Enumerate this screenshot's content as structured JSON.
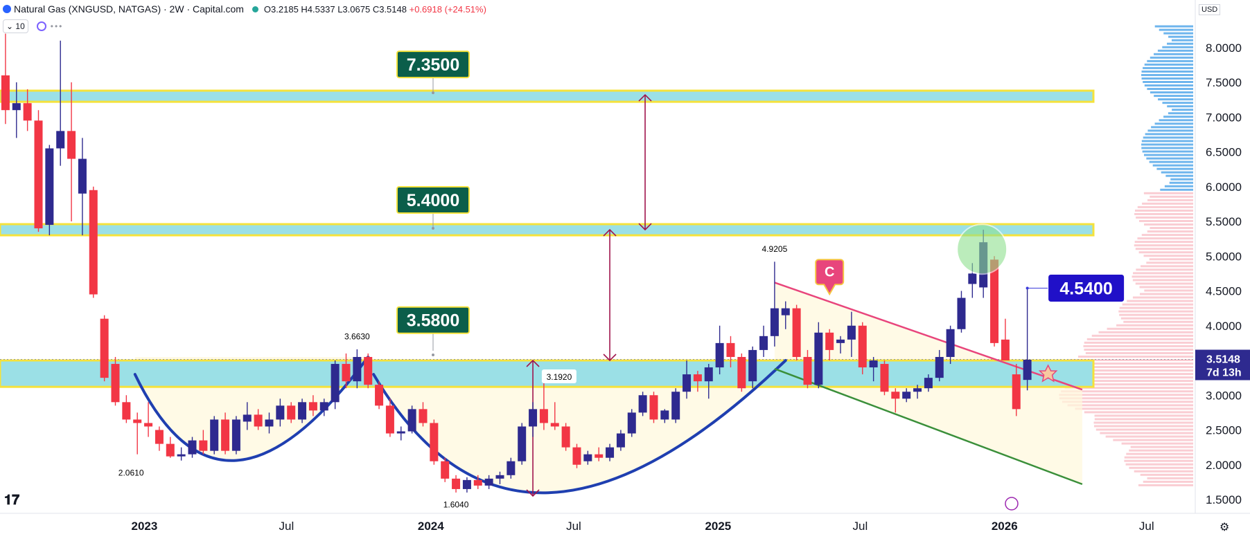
{
  "header": {
    "symbol": "Natural Gas (XNGUSD, NATGAS) · 2W · Capital.com",
    "open": "O3.2185",
    "high": "H4.5337",
    "low": "L3.0675",
    "close": "C3.5148",
    "change": "+0.6918 (+24.51%)",
    "interval_count": "10",
    "currency": "USD",
    "colors": {
      "up": "#2e2a8f",
      "down": "#f23645",
      "accent": "#2962ff"
    }
  },
  "chart_data": {
    "type": "candlestick",
    "y_axis": {
      "ticks": [
        1.5,
        2.0,
        2.5,
        3.0,
        3.5,
        4.0,
        4.5,
        5.0,
        5.5,
        6.0,
        6.5,
        7.0,
        7.5,
        8.0
      ],
      "tick_labels": [
        "1.5000",
        "2.0000",
        "2.5000",
        "3.0000",
        "3.5000",
        "4.0000",
        "4.5000",
        "5.0000",
        "5.5000",
        "6.0000",
        "6.5000",
        "7.0000",
        "7.5000",
        "8.0000"
      ],
      "ylim": [
        1.2,
        8.6
      ]
    },
    "x_axis": {
      "ticks": [
        "2023-01-01",
        "2023-07-01",
        "2024-01-01",
        "2024-07-01",
        "2025-01-01",
        "2025-07-01",
        "2026-01-01",
        "2026-07-01"
      ],
      "tick_labels": [
        "2023",
        "Jul",
        "2024",
        "Jul",
        "2025",
        "Jul",
        "2026",
        "Jul"
      ],
      "xlim": [
        "2022-07-01",
        "2026-09-01"
      ]
    },
    "candles": [
      {
        "d": "2022-07-08",
        "o": 7.6,
        "h": 8.2,
        "l": 6.9,
        "c": 7.1
      },
      {
        "d": "2022-07-22",
        "o": 7.1,
        "h": 7.5,
        "l": 6.7,
        "c": 7.2
      },
      {
        "d": "2022-08-05",
        "o": 7.2,
        "h": 7.4,
        "l": 6.8,
        "c": 6.95
      },
      {
        "d": "2022-08-19",
        "o": 6.95,
        "h": 7.1,
        "l": 5.35,
        "c": 5.4
      },
      {
        "d": "2022-09-02",
        "o": 5.45,
        "h": 6.6,
        "l": 5.3,
        "c": 6.55
      },
      {
        "d": "2022-09-16",
        "o": 6.55,
        "h": 8.1,
        "l": 6.3,
        "c": 6.8
      },
      {
        "d": "2022-09-30",
        "o": 6.8,
        "h": 7.5,
        "l": 5.5,
        "c": 6.4
      },
      {
        "d": "2022-10-14",
        "o": 5.9,
        "h": 6.7,
        "l": 5.3,
        "c": 6.4
      },
      {
        "d": "2022-10-28",
        "o": 5.95,
        "h": 6.0,
        "l": 4.4,
        "c": 4.45
      },
      {
        "d": "2022-11-11",
        "o": 4.1,
        "h": 4.15,
        "l": 3.2,
        "c": 3.25
      },
      {
        "d": "2022-11-25",
        "o": 3.45,
        "h": 3.55,
        "l": 2.85,
        "c": 2.9
      },
      {
        "d": "2022-12-09",
        "o": 2.9,
        "h": 3.0,
        "l": 2.6,
        "c": 2.65
      },
      {
        "d": "2022-12-23",
        "o": 2.65,
        "h": 2.75,
        "l": 2.15,
        "c": 2.6
      },
      {
        "d": "2023-01-06",
        "o": 2.6,
        "h": 2.9,
        "l": 2.4,
        "c": 2.55
      },
      {
        "d": "2023-01-20",
        "o": 2.5,
        "h": 2.55,
        "l": 2.2,
        "c": 2.3
      },
      {
        "d": "2023-02-03",
        "o": 2.3,
        "h": 2.4,
        "l": 2.1,
        "c": 2.12
      },
      {
        "d": "2023-02-17",
        "o": 2.12,
        "h": 2.25,
        "l": 2.06,
        "c": 2.15
      },
      {
        "d": "2023-03-03",
        "o": 2.15,
        "h": 2.4,
        "l": 2.1,
        "c": 2.35
      },
      {
        "d": "2023-03-17",
        "o": 2.35,
        "h": 2.5,
        "l": 2.15,
        "c": 2.2
      },
      {
        "d": "2023-03-31",
        "o": 2.2,
        "h": 2.7,
        "l": 2.15,
        "c": 2.65
      },
      {
        "d": "2023-04-14",
        "o": 2.65,
        "h": 2.75,
        "l": 2.15,
        "c": 2.2
      },
      {
        "d": "2023-04-28",
        "o": 2.2,
        "h": 2.7,
        "l": 2.15,
        "c": 2.65
      },
      {
        "d": "2023-05-12",
        "o": 2.62,
        "h": 2.9,
        "l": 2.5,
        "c": 2.72
      },
      {
        "d": "2023-05-26",
        "o": 2.72,
        "h": 2.8,
        "l": 2.5,
        "c": 2.55
      },
      {
        "d": "2023-06-09",
        "o": 2.55,
        "h": 2.75,
        "l": 2.45,
        "c": 2.65
      },
      {
        "d": "2023-06-23",
        "o": 2.65,
        "h": 2.95,
        "l": 2.55,
        "c": 2.85
      },
      {
        "d": "2023-07-07",
        "o": 2.85,
        "h": 2.9,
        "l": 2.6,
        "c": 2.65
      },
      {
        "d": "2023-07-21",
        "o": 2.65,
        "h": 2.95,
        "l": 2.6,
        "c": 2.9
      },
      {
        "d": "2023-08-04",
        "o": 2.9,
        "h": 3.0,
        "l": 2.7,
        "c": 2.78
      },
      {
        "d": "2023-08-18",
        "o": 2.78,
        "h": 2.95,
        "l": 2.7,
        "c": 2.9
      },
      {
        "d": "2023-09-01",
        "o": 2.9,
        "h": 3.5,
        "l": 2.8,
        "c": 3.45
      },
      {
        "d": "2023-09-15",
        "o": 3.45,
        "h": 3.6,
        "l": 3.1,
        "c": 3.2
      },
      {
        "d": "2023-09-29",
        "o": 3.2,
        "h": 3.66,
        "l": 3.1,
        "c": 3.55
      },
      {
        "d": "2023-10-13",
        "o": 3.55,
        "h": 3.6,
        "l": 3.1,
        "c": 3.15
      },
      {
        "d": "2023-10-27",
        "o": 3.15,
        "h": 3.2,
        "l": 2.8,
        "c": 2.85
      },
      {
        "d": "2023-11-10",
        "o": 2.85,
        "h": 2.95,
        "l": 2.4,
        "c": 2.45
      },
      {
        "d": "2023-11-24",
        "o": 2.45,
        "h": 2.55,
        "l": 2.35,
        "c": 2.48
      },
      {
        "d": "2023-12-08",
        "o": 2.48,
        "h": 2.85,
        "l": 2.45,
        "c": 2.8
      },
      {
        "d": "2023-12-22",
        "o": 2.8,
        "h": 2.9,
        "l": 2.55,
        "c": 2.6
      },
      {
        "d": "2024-01-05",
        "o": 2.6,
        "h": 2.65,
        "l": 2.0,
        "c": 2.05
      },
      {
        "d": "2024-01-19",
        "o": 2.05,
        "h": 2.1,
        "l": 1.75,
        "c": 1.8
      },
      {
        "d": "2024-02-02",
        "o": 1.8,
        "h": 1.85,
        "l": 1.6,
        "c": 1.65
      },
      {
        "d": "2024-02-16",
        "o": 1.65,
        "h": 1.82,
        "l": 1.6,
        "c": 1.78
      },
      {
        "d": "2024-03-01",
        "o": 1.78,
        "h": 1.85,
        "l": 1.65,
        "c": 1.7
      },
      {
        "d": "2024-03-15",
        "o": 1.7,
        "h": 1.85,
        "l": 1.65,
        "c": 1.8
      },
      {
        "d": "2024-03-29",
        "o": 1.8,
        "h": 1.9,
        "l": 1.72,
        "c": 1.85
      },
      {
        "d": "2024-04-12",
        "o": 1.85,
        "h": 2.1,
        "l": 1.8,
        "c": 2.05
      },
      {
        "d": "2024-04-26",
        "o": 2.05,
        "h": 2.6,
        "l": 2.0,
        "c": 2.55
      },
      {
        "d": "2024-05-10",
        "o": 2.55,
        "h": 2.9,
        "l": 2.4,
        "c": 2.8
      },
      {
        "d": "2024-05-24",
        "o": 2.8,
        "h": 3.19,
        "l": 2.5,
        "c": 2.6
      },
      {
        "d": "2024-06-07",
        "o": 2.6,
        "h": 2.9,
        "l": 2.5,
        "c": 2.55
      },
      {
        "d": "2024-06-21",
        "o": 2.55,
        "h": 2.6,
        "l": 2.2,
        "c": 2.25
      },
      {
        "d": "2024-07-05",
        "o": 2.25,
        "h": 2.3,
        "l": 1.95,
        "c": 2.0
      },
      {
        "d": "2024-07-19",
        "o": 2.05,
        "h": 2.2,
        "l": 2.0,
        "c": 2.15
      },
      {
        "d": "2024-08-02",
        "o": 2.15,
        "h": 2.25,
        "l": 2.05,
        "c": 2.1
      },
      {
        "d": "2024-08-16",
        "o": 2.1,
        "h": 2.3,
        "l": 2.05,
        "c": 2.25
      },
      {
        "d": "2024-08-30",
        "o": 2.25,
        "h": 2.5,
        "l": 2.2,
        "c": 2.45
      },
      {
        "d": "2024-09-13",
        "o": 2.45,
        "h": 2.8,
        "l": 2.4,
        "c": 2.75
      },
      {
        "d": "2024-09-27",
        "o": 2.75,
        "h": 3.05,
        "l": 2.7,
        "c": 3.0
      },
      {
        "d": "2024-10-11",
        "o": 3.0,
        "h": 3.05,
        "l": 2.6,
        "c": 2.65
      },
      {
        "d": "2024-10-25",
        "o": 2.65,
        "h": 2.8,
        "l": 2.6,
        "c": 2.78
      },
      {
        "d": "2024-11-08",
        "o": 2.65,
        "h": 3.1,
        "l": 2.6,
        "c": 3.05
      },
      {
        "d": "2024-11-22",
        "o": 3.05,
        "h": 3.5,
        "l": 2.95,
        "c": 3.3
      },
      {
        "d": "2024-12-06",
        "o": 3.3,
        "h": 3.35,
        "l": 3.05,
        "c": 3.2
      },
      {
        "d": "2024-12-20",
        "o": 3.2,
        "h": 3.45,
        "l": 2.95,
        "c": 3.4
      },
      {
        "d": "2025-01-03",
        "o": 3.4,
        "h": 4.0,
        "l": 3.3,
        "c": 3.75
      },
      {
        "d": "2025-01-17",
        "o": 3.75,
        "h": 3.85,
        "l": 3.4,
        "c": 3.55
      },
      {
        "d": "2025-01-31",
        "o": 3.55,
        "h": 3.6,
        "l": 3.05,
        "c": 3.1
      },
      {
        "d": "2025-02-14",
        "o": 3.2,
        "h": 3.7,
        "l": 3.1,
        "c": 3.65
      },
      {
        "d": "2025-02-28",
        "o": 3.65,
        "h": 4.0,
        "l": 3.55,
        "c": 3.85
      },
      {
        "d": "2025-03-14",
        "o": 3.85,
        "h": 4.92,
        "l": 3.7,
        "c": 4.25
      },
      {
        "d": "2025-03-28",
        "o": 4.15,
        "h": 4.35,
        "l": 3.95,
        "c": 4.25
      },
      {
        "d": "2025-04-11",
        "o": 4.25,
        "h": 4.3,
        "l": 3.5,
        "c": 3.55
      },
      {
        "d": "2025-04-25",
        "o": 3.55,
        "h": 3.65,
        "l": 3.1,
        "c": 3.15
      },
      {
        "d": "2025-05-09",
        "o": 3.15,
        "h": 4.05,
        "l": 3.1,
        "c": 3.9
      },
      {
        "d": "2025-05-23",
        "o": 3.9,
        "h": 3.95,
        "l": 3.5,
        "c": 3.65
      },
      {
        "d": "2025-06-06",
        "o": 3.75,
        "h": 3.85,
        "l": 3.6,
        "c": 3.8
      },
      {
        "d": "2025-06-20",
        "o": 3.8,
        "h": 4.2,
        "l": 3.55,
        "c": 4.0
      },
      {
        "d": "2025-07-04",
        "o": 4.0,
        "h": 4.05,
        "l": 3.3,
        "c": 3.4
      },
      {
        "d": "2025-07-18",
        "o": 3.4,
        "h": 3.55,
        "l": 3.2,
        "c": 3.5
      },
      {
        "d": "2025-08-01",
        "o": 3.45,
        "h": 3.5,
        "l": 3.0,
        "c": 3.05
      },
      {
        "d": "2025-08-15",
        "o": 3.05,
        "h": 3.1,
        "l": 2.75,
        "c": 2.95
      },
      {
        "d": "2025-08-29",
        "o": 2.95,
        "h": 3.1,
        "l": 2.9,
        "c": 3.05
      },
      {
        "d": "2025-09-12",
        "o": 3.05,
        "h": 3.15,
        "l": 2.95,
        "c": 3.1
      },
      {
        "d": "2025-09-26",
        "o": 3.1,
        "h": 3.3,
        "l": 3.05,
        "c": 3.25
      },
      {
        "d": "2025-10-10",
        "o": 3.25,
        "h": 3.65,
        "l": 3.2,
        "c": 3.55
      },
      {
        "d": "2025-10-24",
        "o": 3.55,
        "h": 4.0,
        "l": 3.45,
        "c": 3.95
      },
      {
        "d": "2025-11-07",
        "o": 3.95,
        "h": 4.5,
        "l": 3.9,
        "c": 4.4
      },
      {
        "d": "2025-11-21",
        "o": 4.6,
        "h": 4.9,
        "l": 4.4,
        "c": 4.75
      },
      {
        "d": "2025-12-05",
        "o": 4.55,
        "h": 5.38,
        "l": 4.4,
        "c": 5.2
      },
      {
        "d": "2025-12-19",
        "o": 4.95,
        "h": 5.0,
        "l": 3.7,
        "c": 3.75
      },
      {
        "d": "2026-01-02",
        "o": 3.8,
        "h": 4.1,
        "l": 3.5,
        "c": 3.5
      },
      {
        "d": "2026-01-16",
        "o": 3.3,
        "h": 3.45,
        "l": 2.7,
        "c": 2.8
      },
      {
        "d": "2026-01-30",
        "o": 3.22,
        "h": 4.53,
        "l": 3.07,
        "c": 3.51
      }
    ],
    "horizontal_levels": [
      {
        "value": 7.35,
        "label": "7.3500",
        "band": [
          7.22,
          7.38
        ]
      },
      {
        "value": 5.4,
        "label": "5.4000",
        "band": [
          5.3,
          5.46
        ]
      },
      {
        "value": 3.58,
        "label": "3.5800",
        "band": [
          3.12,
          3.5
        ]
      }
    ],
    "annotations": [
      {
        "kind": "price_label",
        "date": "2022-12-15",
        "value": 2.061,
        "text": "2.0610"
      },
      {
        "kind": "price_label",
        "date": "2023-09-29",
        "value": 3.663,
        "text": "3.6630"
      },
      {
        "kind": "price_label",
        "date": "2024-02-02",
        "value": 1.604,
        "text": "1.6040"
      },
      {
        "kind": "price_label",
        "date": "2024-05-24",
        "value": 3.192,
        "text": "3.1920"
      },
      {
        "kind": "price_label",
        "date": "2025-03-14",
        "value": 4.9205,
        "text": "4.9205"
      },
      {
        "kind": "callout",
        "date": "2025-05-23",
        "value": 4.35,
        "text": "C"
      },
      {
        "kind": "target",
        "date": "2026-01-30",
        "value": 4.54,
        "text": "4.5400"
      }
    ],
    "trendlines": [
      {
        "name": "resistance",
        "color": "#e8457c",
        "from": [
          "2025-03-14",
          4.62
        ],
        "to": [
          "2026-04-10",
          3.08
        ]
      },
      {
        "name": "support",
        "color": "#3a8f3a",
        "from": [
          "2025-03-14",
          3.38
        ],
        "to": [
          "2026-04-10",
          1.72
        ]
      }
    ],
    "arcs": [
      {
        "color": "#1f3fb0",
        "from": [
          "2022-12-20",
          3.3
        ],
        "bottom": [
          "2023-04-10",
          2.05
        ],
        "to": [
          "2023-10-13",
          3.55
        ]
      },
      {
        "color": "#1f3fb0",
        "from": [
          "2023-10-20",
          3.3
        ],
        "bottom": [
          "2024-04-20",
          1.55
        ],
        "to": [
          "2025-03-28",
          3.5
        ]
      }
    ],
    "arrows": [
      {
        "date": "2024-05-10",
        "from": 1.55,
        "to": 3.5
      },
      {
        "date": "2024-08-16",
        "from": 3.5,
        "to": 5.38
      },
      {
        "date": "2024-09-30",
        "from": 5.38,
        "to": 7.32
      }
    ],
    "last_price": {
      "value": 3.5148,
      "text": "3.5148",
      "countdown": "7d 13h"
    }
  }
}
